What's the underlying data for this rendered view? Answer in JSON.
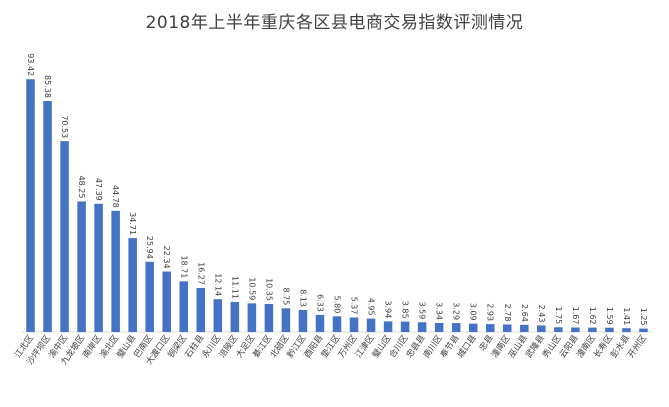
{
  "chart_data": {
    "type": "bar",
    "title": "2018年上半年重庆各区县电商交易指数评测情况",
    "xlabel": "",
    "ylabel": "",
    "ylim": [
      0,
      100
    ],
    "grid": false,
    "bar_color": "#4472C4",
    "categories": [
      "江北区",
      "沙坪坝区",
      "渝中区",
      "九龙坡区",
      "南岸区",
      "渝北区",
      "璧山县",
      "巴南区",
      "大渡口区",
      "铜梁区",
      "石柱县",
      "永川区",
      "涪陵区",
      "大足区",
      "綦江区",
      "北碚区",
      "黔江区",
      "酉阳县",
      "垫江区",
      "万州区",
      "江津区",
      "璧山区",
      "合川区",
      "忠县县",
      "南川区",
      "奉节县",
      "城口县",
      "忠县",
      "潼南区",
      "巫山县",
      "武隆县",
      "秀山区",
      "云阳县",
      "潼南区",
      "长寿区",
      "彭水县",
      "开州区"
    ],
    "values": [
      93.42,
      85.38,
      70.53,
      48.25,
      47.39,
      44.78,
      34.71,
      25.94,
      22.34,
      18.71,
      16.27,
      12.14,
      11.11,
      10.59,
      10.35,
      8.75,
      8.13,
      6.33,
      5.8,
      5.37,
      4.95,
      3.94,
      3.85,
      3.59,
      3.34,
      3.29,
      3.09,
      2.93,
      2.78,
      2.64,
      2.43,
      1.75,
      1.67,
      1.62,
      1.59,
      1.41,
      1.25
    ]
  }
}
